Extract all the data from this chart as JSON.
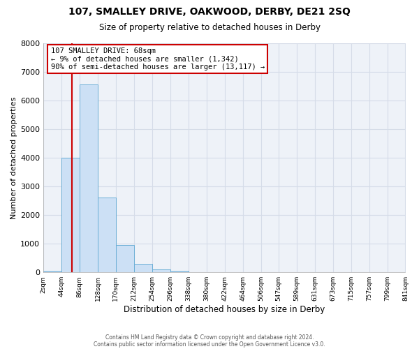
{
  "title1": "107, SMALLEY DRIVE, OAKWOOD, DERBY, DE21 2SQ",
  "title2": "Size of property relative to detached houses in Derby",
  "xlabel": "Distribution of detached houses by size in Derby",
  "ylabel": "Number of detached properties",
  "bin_edges": [
    2,
    44,
    86,
    128,
    170,
    212,
    254,
    296,
    338,
    380,
    422,
    464,
    506,
    547,
    589,
    631,
    673,
    715,
    757,
    799,
    841
  ],
  "bar_heights": [
    50,
    4000,
    6550,
    2600,
    950,
    300,
    100,
    50,
    0,
    0,
    0,
    0,
    0,
    0,
    0,
    0,
    0,
    0,
    0,
    0
  ],
  "bar_color": "#cce0f5",
  "bar_edge_color": "#6aaed6",
  "vline_x": 68,
  "vline_color": "#cc0000",
  "ylim": [
    0,
    8000
  ],
  "yticks": [
    0,
    1000,
    2000,
    3000,
    4000,
    5000,
    6000,
    7000,
    8000
  ],
  "tick_labels": [
    "2sqm",
    "44sqm",
    "86sqm",
    "128sqm",
    "170sqm",
    "212sqm",
    "254sqm",
    "296sqm",
    "338sqm",
    "380sqm",
    "422sqm",
    "464sqm",
    "506sqm",
    "547sqm",
    "589sqm",
    "631sqm",
    "673sqm",
    "715sqm",
    "757sqm",
    "799sqm",
    "841sqm"
  ],
  "annotation_line1": "107 SMALLEY DRIVE: 68sqm",
  "annotation_line2": "← 9% of detached houses are smaller (1,342)",
  "annotation_line3": "90% of semi-detached houses are larger (13,117) →",
  "footer1": "Contains HM Land Registry data © Crown copyright and database right 2024.",
  "footer2": "Contains public sector information licensed under the Open Government Licence v3.0.",
  "grid_color": "#d5dce8",
  "bg_color": "#ffffff",
  "ax_bg_color": "#eef2f8"
}
